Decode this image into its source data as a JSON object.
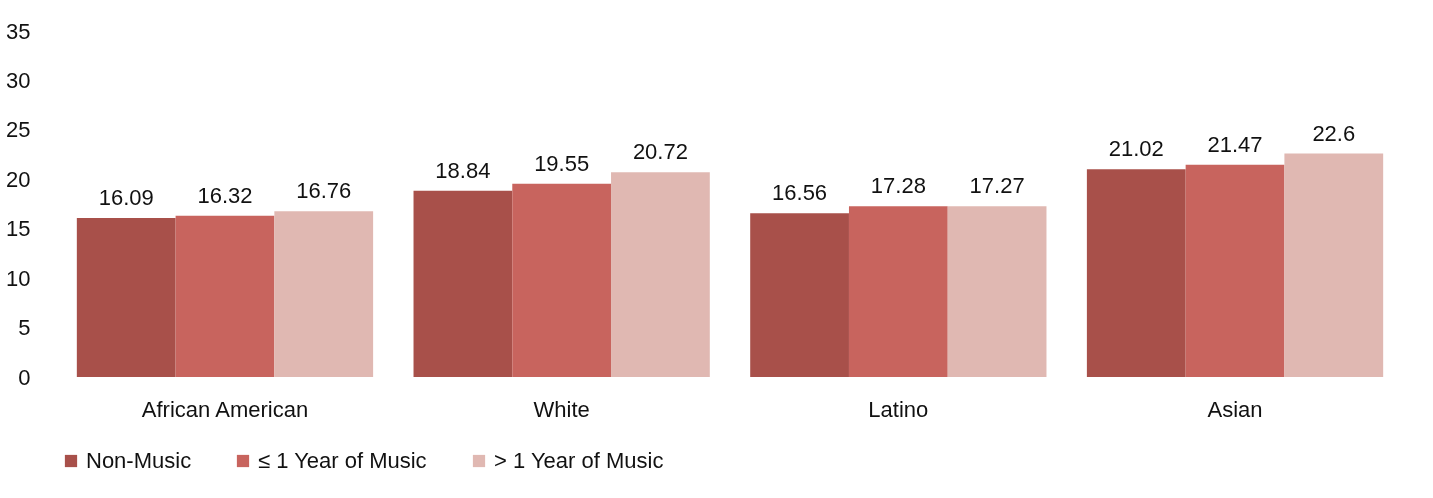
{
  "chart_data": {
    "type": "bar",
    "categories": [
      "African American",
      "White",
      "Latino",
      "Asian"
    ],
    "series": [
      {
        "name": "Non-Music",
        "color": "#a8504a",
        "values": [
          16.09,
          18.84,
          16.56,
          21.02
        ]
      },
      {
        "name": "≤ 1 Year of Music",
        "color": "#c8645e",
        "values": [
          16.32,
          19.55,
          17.28,
          21.47
        ]
      },
      {
        "name": "> 1 Year of Music",
        "color": "#e0b8b2",
        "values": [
          16.76,
          20.72,
          17.27,
          22.6
        ]
      }
    ],
    "ylim": [
      0,
      35
    ],
    "yticks": [
      0,
      5,
      10,
      15,
      20,
      25,
      30,
      35
    ],
    "grid": false,
    "legend": "bottom",
    "data_labels": true
  }
}
